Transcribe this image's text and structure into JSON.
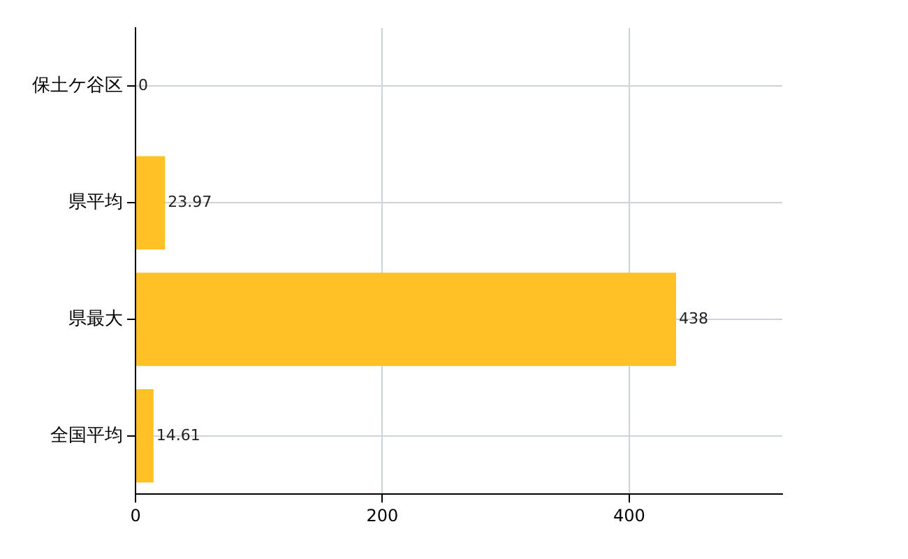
{
  "chart_data": {
    "type": "bar",
    "orientation": "horizontal",
    "categories": [
      "保土ケ谷区",
      "県平均",
      "県最大",
      "全国平均"
    ],
    "values": [
      0,
      23.97,
      438,
      14.61
    ],
    "color": "#ffc125",
    "xlim": [
      0,
      524
    ],
    "xticks": [
      0,
      200,
      400
    ],
    "grid": true,
    "data_labels": true,
    "legend": false
  }
}
